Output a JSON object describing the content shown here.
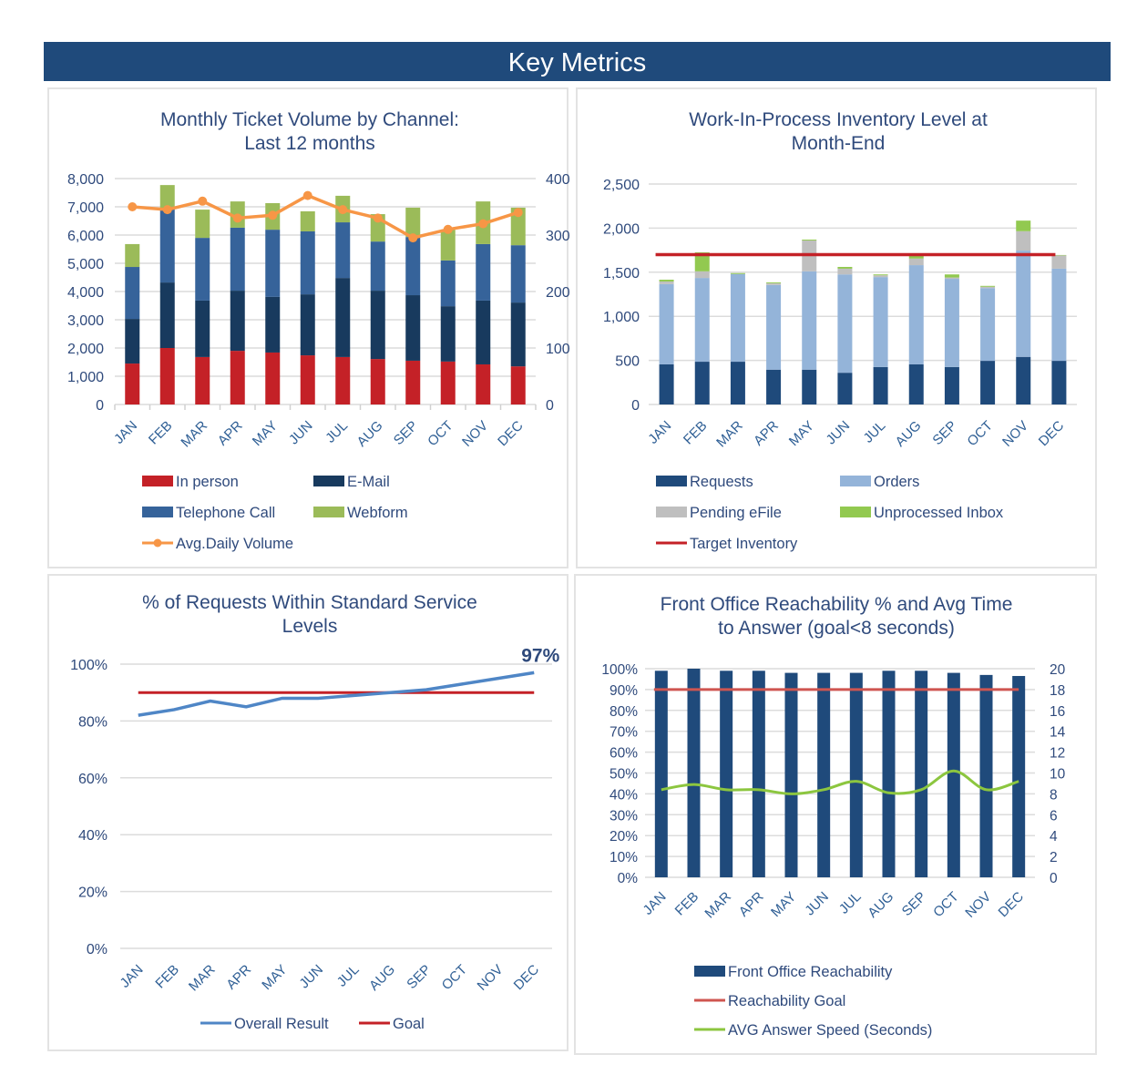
{
  "header": {
    "title": "Key Metrics"
  },
  "colors": {
    "banner": "#1f4a7b",
    "in_person": "#c42127",
    "email": "#183a5e",
    "telephone": "#36639a",
    "webform": "#9bbb59",
    "avg_daily": "#f79646",
    "requests": "#1f4a7b",
    "orders": "#94b4d9",
    "pending": "#bfbfbf",
    "inbox": "#92c950",
    "target": "#c42127",
    "overall": "#4f86c6",
    "goal": "#c42127",
    "reach_goal": "#cf5550",
    "speed": "#8cc63f"
  },
  "chart_data": [
    {
      "id": "ticket-volume",
      "type": "bar",
      "stacked": true,
      "title": [
        "Monthly Ticket Volume by Channel:",
        "Last 12 months"
      ],
      "categories": [
        "JAN",
        "FEB",
        "MAR",
        "APR",
        "MAY",
        "JUN",
        "JUL",
        "AUG",
        "SEP",
        "OCT",
        "NOV",
        "DEC"
      ],
      "series": [
        {
          "name": "In person",
          "kind": "bar",
          "values": [
            1450,
            2000,
            1680,
            1900,
            1840,
            1740,
            1680,
            1610,
            1550,
            1520,
            1420,
            1350
          ]
        },
        {
          "name": "E-Mail",
          "kind": "bar",
          "values": [
            1580,
            2320,
            2000,
            2130,
            1970,
            2160,
            2800,
            2420,
            2320,
            1960,
            2260,
            2260
          ]
        },
        {
          "name": "Telephone Call",
          "kind": "bar",
          "values": [
            1840,
            2610,
            2220,
            2230,
            2380,
            2230,
            1970,
            1740,
            2060,
            1620,
            2000,
            2030
          ]
        },
        {
          "name": "Webform",
          "kind": "bar",
          "values": [
            810,
            840,
            1000,
            930,
            940,
            710,
            940,
            970,
            1040,
            1090,
            1510,
            1330
          ]
        },
        {
          "name": "Avg.Daily Volume",
          "kind": "line",
          "axis": "right",
          "values": [
            350,
            345,
            360,
            330,
            335,
            370,
            345,
            330,
            295,
            310,
            320,
            340
          ]
        }
      ],
      "ylim": [
        0,
        8000
      ],
      "yticks": [
        "0",
        "1,000",
        "2,000",
        "3,000",
        "4,000",
        "5,000",
        "6,000",
        "7,000",
        "8,000"
      ],
      "y2lim": [
        0,
        400
      ],
      "y2ticks": [
        "0",
        "100",
        "200",
        "300",
        "400"
      ],
      "grid": true,
      "legend": [
        "In person",
        "E-Mail",
        "Telephone Call",
        "Webform",
        "Avg.Daily Volume"
      ],
      "legend_position": "bottom"
    },
    {
      "id": "wip-inventory",
      "type": "bar",
      "stacked": true,
      "title": [
        "Work-In-Process Inventory Level at",
        "Month-End"
      ],
      "categories": [
        "JAN",
        "FEB",
        "MAR",
        "APR",
        "MAY",
        "JUN",
        "JUL",
        "AUG",
        "SEP",
        "OCT",
        "NOV",
        "DEC"
      ],
      "series": [
        {
          "name": "Requests",
          "kind": "bar",
          "values": [
            455,
            485,
            485,
            395,
            395,
            360,
            425,
            455,
            425,
            495,
            540,
            495
          ]
        },
        {
          "name": "Orders",
          "kind": "bar",
          "values": [
            910,
            950,
            995,
            960,
            1115,
            1115,
            1020,
            1125,
            1000,
            825,
            1205,
            1045
          ]
        },
        {
          "name": "Pending eFile",
          "kind": "bar",
          "values": [
            30,
            75,
            0,
            20,
            350,
            65,
            20,
            75,
            15,
            15,
            220,
            150
          ]
        },
        {
          "name": "Unprocessed Inbox",
          "kind": "bar",
          "values": [
            20,
            215,
            10,
            10,
            10,
            20,
            10,
            50,
            35,
            10,
            120,
            5
          ]
        },
        {
          "name": "Target Inventory",
          "kind": "line",
          "values": [
            1700,
            1700,
            1700,
            1700,
            1700,
            1700,
            1700,
            1700,
            1700,
            1700,
            1700,
            1700
          ]
        }
      ],
      "ylim": [
        0,
        2500
      ],
      "yticks": [
        "0",
        "500",
        "1,000",
        "1,500",
        "2,000",
        "2,500"
      ],
      "grid": true,
      "legend": [
        "Requests",
        "Orders",
        "Pending eFile",
        "Unprocessed Inbox",
        "Target Inventory"
      ],
      "legend_position": "bottom"
    },
    {
      "id": "service-levels",
      "type": "line",
      "title": [
        "% of Requests Within Standard Service",
        "Levels"
      ],
      "categories": [
        "JAN",
        "FEB",
        "MAR",
        "APR",
        "MAY",
        "JUN",
        "JUL",
        "AUG",
        "SEP",
        "OCT",
        "NOV",
        "DEC"
      ],
      "series": [
        {
          "name": "Overall Result",
          "values": [
            82,
            84,
            87,
            85,
            88,
            88,
            89,
            90,
            91,
            93,
            95,
            97
          ]
        },
        {
          "name": "Goal",
          "values": [
            90,
            90,
            90,
            90,
            90,
            90,
            90,
            90,
            90,
            90,
            90,
            90
          ]
        }
      ],
      "annotation": "97%",
      "ylim": [
        0,
        100
      ],
      "yticks": [
        "0%",
        "20%",
        "40%",
        "60%",
        "80%",
        "100%"
      ],
      "grid": true,
      "legend": [
        "Overall Result",
        "Goal"
      ],
      "legend_position": "bottom"
    },
    {
      "id": "reachability",
      "type": "bar",
      "title": [
        "Front Office Reachability % and Avg Time",
        "to Answer (goal<8 seconds)"
      ],
      "categories": [
        "JAN",
        "FEB",
        "MAR",
        "APR",
        "MAY",
        "JUN",
        "JUL",
        "AUG",
        "SEP",
        "OCT",
        "NOV",
        "DEC"
      ],
      "series": [
        {
          "name": "Front Office Reachability",
          "kind": "bar",
          "values": [
            99,
            100,
            99,
            99,
            98,
            98,
            98,
            99,
            99,
            98,
            97,
            96.5
          ]
        },
        {
          "name": "Reachability Goal",
          "kind": "line",
          "values": [
            90,
            90,
            90,
            90,
            90,
            90,
            90,
            90,
            90,
            90,
            90,
            90
          ]
        },
        {
          "name": "AVG Answer Speed (Seconds)",
          "kind": "line",
          "axis": "right",
          "values": [
            8.4,
            8.9,
            8.4,
            8.4,
            8.0,
            8.4,
            9.2,
            8.1,
            8.4,
            10.2,
            8.4,
            9.2
          ]
        }
      ],
      "ylim": [
        0,
        100
      ],
      "yticks": [
        "0%",
        "10%",
        "20%",
        "30%",
        "40%",
        "50%",
        "60%",
        "70%",
        "80%",
        "90%",
        "100%"
      ],
      "y2lim": [
        0,
        20
      ],
      "y2ticks": [
        "0",
        "2",
        "4",
        "6",
        "8",
        "10",
        "12",
        "14",
        "16",
        "18",
        "20"
      ],
      "grid": true,
      "legend": [
        "Front Office Reachability",
        "Reachability Goal",
        "AVG Answer Speed (Seconds)"
      ],
      "legend_position": "bottom"
    }
  ]
}
